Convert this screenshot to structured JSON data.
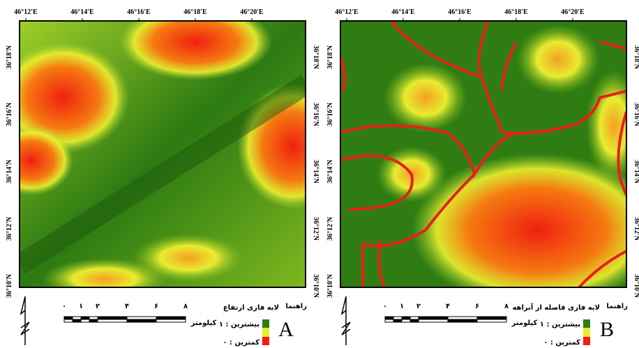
{
  "panels": [
    {
      "letter": "A",
      "legend_heading": "راهنما",
      "layer_title": "لایه فازی ارتفاع",
      "max_label": "بیشترین : ۱",
      "min_label": "کمترین : ۰",
      "scale_labels": [
        "۰",
        "۱",
        "۲",
        "۴",
        "۶",
        "۸"
      ],
      "scale_unit": "کیلومتر",
      "lon_labels": [
        "46°12'E",
        "46°14'E",
        "46°16'E",
        "46°18'E",
        "46°20'E"
      ],
      "lat_labels": [
        "36°18'N",
        "36°16'N",
        "36°14'N",
        "36°12'N",
        "36°10'N"
      ]
    },
    {
      "letter": "B",
      "legend_heading": "راهنما",
      "layer_title": "لایه فازی فاصله از آبراهه",
      "max_label": "بیشترین : ۱",
      "min_label": "کمترین : ۰",
      "scale_labels": [
        "۰",
        "۱",
        "۲",
        "۴",
        "۶",
        "۸"
      ],
      "scale_unit": "کیلومتر",
      "lon_labels": [
        "46°12'E",
        "46°14'E",
        "46°16'E",
        "46°18'E",
        "46°20'E"
      ],
      "lat_labels": [
        "36°18'N",
        "36°16'N",
        "36°14'N",
        "36°12'N",
        "36°10'N"
      ]
    }
  ]
}
